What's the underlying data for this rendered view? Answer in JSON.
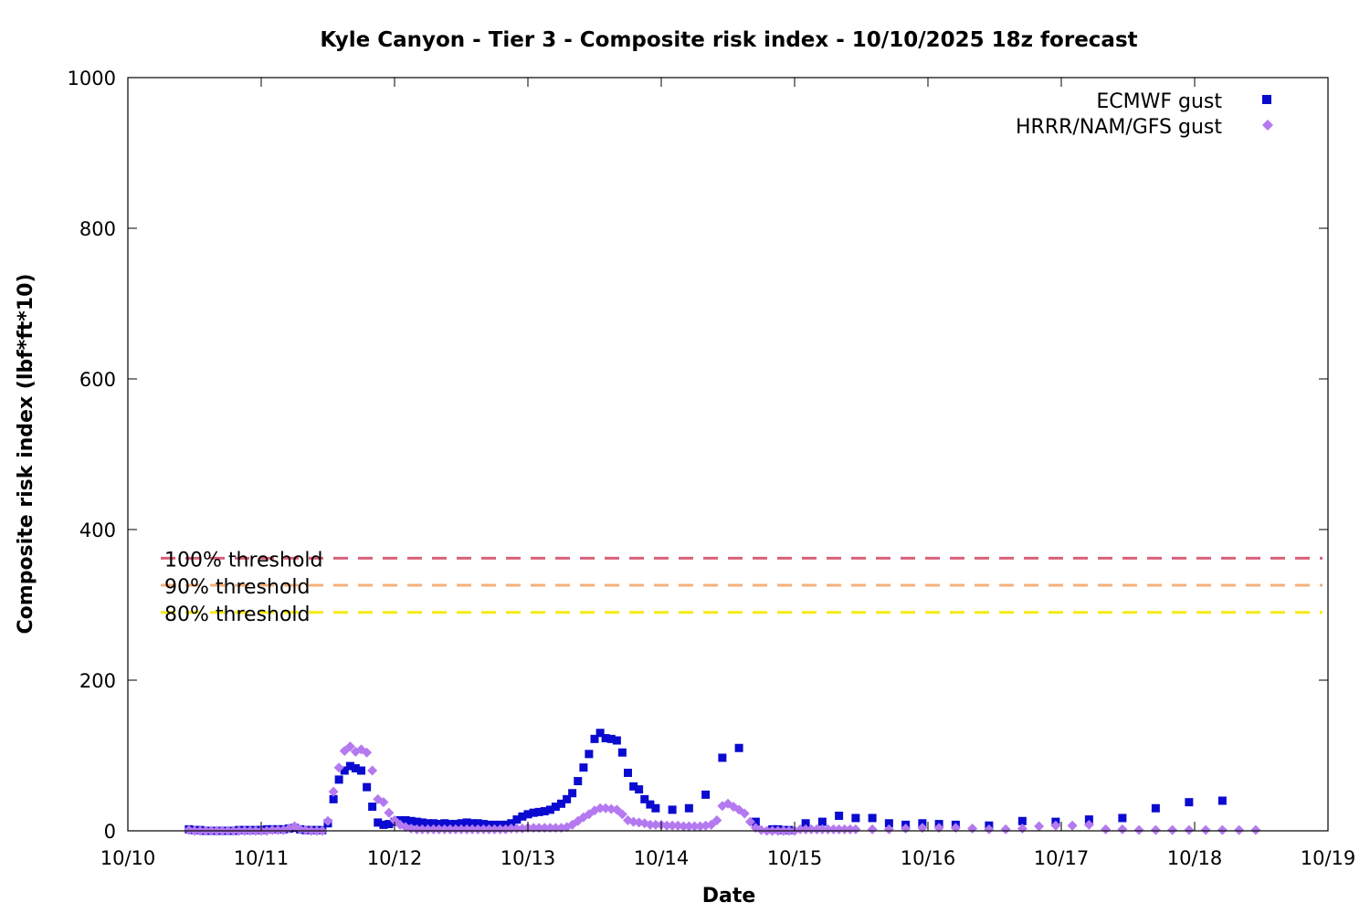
{
  "chart_data": {
    "type": "scatter",
    "title": "Kyle Canyon - Tier 3 - Composite risk index - 10/10/2025 18z forecast",
    "xlabel": "Date",
    "ylabel": "Composite risk index (lbf*ft*10)",
    "x_start_date": "2025-10-10",
    "xlim": [
      0,
      9
    ],
    "ylim": [
      0,
      1000
    ],
    "x_ticks": [
      "10/10",
      "10/11",
      "10/12",
      "10/13",
      "10/14",
      "10/15",
      "10/16",
      "10/17",
      "10/18",
      "10/19"
    ],
    "y_ticks": [
      0,
      200,
      400,
      600,
      800,
      1000
    ],
    "grid": false,
    "legend_position": "top-right",
    "thresholds": [
      {
        "label": "100% threshold",
        "value": 362,
        "color": "#d9607a"
      },
      {
        "label": "90% threshold",
        "value": 326,
        "color": "#f5b07a"
      },
      {
        "label": "80% threshold",
        "value": 290,
        "color": "#f5ea14"
      }
    ],
    "series": [
      {
        "name": "ECMWF gust",
        "marker": "square",
        "color": "#0a0ad0",
        "points": [
          [
            0.458,
            2
          ],
          [
            0.5,
            1
          ],
          [
            0.542,
            1
          ],
          [
            0.583,
            0
          ],
          [
            0.625,
            0
          ],
          [
            0.667,
            0
          ],
          [
            0.708,
            0
          ],
          [
            0.75,
            0
          ],
          [
            0.792,
            0
          ],
          [
            0.833,
            1
          ],
          [
            0.875,
            1
          ],
          [
            0.917,
            1
          ],
          [
            0.958,
            1
          ],
          [
            1.0,
            1
          ],
          [
            1.042,
            2
          ],
          [
            1.083,
            2
          ],
          [
            1.125,
            2
          ],
          [
            1.167,
            2
          ],
          [
            1.208,
            3
          ],
          [
            1.25,
            4
          ],
          [
            1.292,
            2
          ],
          [
            1.333,
            1
          ],
          [
            1.375,
            1
          ],
          [
            1.417,
            1
          ],
          [
            1.458,
            1
          ],
          [
            1.5,
            10
          ],
          [
            1.542,
            42
          ],
          [
            1.583,
            68
          ],
          [
            1.625,
            80
          ],
          [
            1.667,
            86
          ],
          [
            1.708,
            83
          ],
          [
            1.75,
            80
          ],
          [
            1.792,
            58
          ],
          [
            1.833,
            32
          ],
          [
            1.875,
            11
          ],
          [
            1.917,
            8
          ],
          [
            1.958,
            9
          ],
          [
            2.0,
            12
          ],
          [
            2.042,
            14
          ],
          [
            2.083,
            14
          ],
          [
            2.125,
            13
          ],
          [
            2.167,
            12
          ],
          [
            2.208,
            11
          ],
          [
            2.25,
            10
          ],
          [
            2.292,
            10
          ],
          [
            2.333,
            9
          ],
          [
            2.375,
            10
          ],
          [
            2.417,
            9
          ],
          [
            2.458,
            9
          ],
          [
            2.5,
            10
          ],
          [
            2.542,
            11
          ],
          [
            2.583,
            10
          ],
          [
            2.625,
            10
          ],
          [
            2.667,
            9
          ],
          [
            2.708,
            8
          ],
          [
            2.75,
            8
          ],
          [
            2.792,
            8
          ],
          [
            2.833,
            8
          ],
          [
            2.875,
            10
          ],
          [
            2.917,
            15
          ],
          [
            2.958,
            19
          ],
          [
            3.0,
            22
          ],
          [
            3.042,
            24
          ],
          [
            3.083,
            25
          ],
          [
            3.125,
            26
          ],
          [
            3.167,
            28
          ],
          [
            3.208,
            32
          ],
          [
            3.25,
            36
          ],
          [
            3.292,
            42
          ],
          [
            3.333,
            50
          ],
          [
            3.375,
            66
          ],
          [
            3.417,
            84
          ],
          [
            3.458,
            102
          ],
          [
            3.5,
            122
          ],
          [
            3.542,
            130
          ],
          [
            3.583,
            123
          ],
          [
            3.625,
            122
          ],
          [
            3.667,
            120
          ],
          [
            3.708,
            104
          ],
          [
            3.75,
            77
          ],
          [
            3.792,
            59
          ],
          [
            3.833,
            55
          ],
          [
            3.875,
            42
          ],
          [
            3.917,
            35
          ],
          [
            3.958,
            30
          ],
          [
            4.083,
            28
          ],
          [
            4.208,
            30
          ],
          [
            4.333,
            48
          ],
          [
            4.458,
            97
          ],
          [
            4.583,
            110
          ],
          [
            4.708,
            12
          ],
          [
            4.833,
            2
          ],
          [
            4.875,
            2
          ],
          [
            4.917,
            1
          ],
          [
            4.958,
            1
          ],
          [
            5.083,
            10
          ],
          [
            5.208,
            12
          ],
          [
            5.333,
            20
          ],
          [
            5.458,
            17
          ],
          [
            5.583,
            17
          ],
          [
            5.708,
            10
          ],
          [
            5.833,
            8
          ],
          [
            5.958,
            10
          ],
          [
            6.083,
            9
          ],
          [
            6.208,
            8
          ],
          [
            6.458,
            7
          ],
          [
            6.708,
            13
          ],
          [
            6.958,
            12
          ],
          [
            7.208,
            15
          ],
          [
            7.458,
            17
          ],
          [
            7.708,
            30
          ],
          [
            7.958,
            38
          ],
          [
            8.208,
            40
          ]
        ]
      },
      {
        "name": "HRRR/NAM/GFS gust",
        "marker": "diamond",
        "color": "#b479f0",
        "points": [
          [
            0.458,
            1
          ],
          [
            0.5,
            0
          ],
          [
            0.542,
            0
          ],
          [
            0.583,
            0
          ],
          [
            0.625,
            0
          ],
          [
            0.667,
            0
          ],
          [
            0.708,
            0
          ],
          [
            0.75,
            0
          ],
          [
            0.792,
            0
          ],
          [
            0.833,
            0
          ],
          [
            0.875,
            0
          ],
          [
            0.917,
            0
          ],
          [
            0.958,
            0
          ],
          [
            1.0,
            0
          ],
          [
            1.042,
            0
          ],
          [
            1.083,
            1
          ],
          [
            1.125,
            1
          ],
          [
            1.167,
            1
          ],
          [
            1.208,
            3
          ],
          [
            1.25,
            6
          ],
          [
            1.292,
            2
          ],
          [
            1.333,
            1
          ],
          [
            1.375,
            0
          ],
          [
            1.417,
            0
          ],
          [
            1.458,
            0
          ],
          [
            1.5,
            13
          ],
          [
            1.542,
            52
          ],
          [
            1.583,
            84
          ],
          [
            1.625,
            106
          ],
          [
            1.667,
            112
          ],
          [
            1.708,
            105
          ],
          [
            1.75,
            108
          ],
          [
            1.792,
            104
          ],
          [
            1.833,
            80
          ],
          [
            1.875,
            42
          ],
          [
            1.917,
            38
          ],
          [
            1.958,
            24
          ],
          [
            2.0,
            14
          ],
          [
            2.042,
            8
          ],
          [
            2.083,
            5
          ],
          [
            2.125,
            3
          ],
          [
            2.167,
            2
          ],
          [
            2.208,
            2
          ],
          [
            2.25,
            2
          ],
          [
            2.292,
            2
          ],
          [
            2.333,
            2
          ],
          [
            2.375,
            2
          ],
          [
            2.417,
            2
          ],
          [
            2.458,
            2
          ],
          [
            2.5,
            2
          ],
          [
            2.542,
            2
          ],
          [
            2.583,
            2
          ],
          [
            2.625,
            2
          ],
          [
            2.667,
            2
          ],
          [
            2.708,
            2
          ],
          [
            2.75,
            2
          ],
          [
            2.792,
            2
          ],
          [
            2.833,
            2
          ],
          [
            2.875,
            3
          ],
          [
            2.917,
            3
          ],
          [
            2.958,
            3
          ],
          [
            3.0,
            4
          ],
          [
            3.042,
            4
          ],
          [
            3.083,
            4
          ],
          [
            3.125,
            4
          ],
          [
            3.167,
            4
          ],
          [
            3.208,
            4
          ],
          [
            3.25,
            4
          ],
          [
            3.292,
            5
          ],
          [
            3.333,
            8
          ],
          [
            3.375,
            13
          ],
          [
            3.417,
            18
          ],
          [
            3.458,
            22
          ],
          [
            3.5,
            27
          ],
          [
            3.542,
            30
          ],
          [
            3.583,
            30
          ],
          [
            3.625,
            29
          ],
          [
            3.667,
            28
          ],
          [
            3.708,
            22
          ],
          [
            3.75,
            14
          ],
          [
            3.792,
            12
          ],
          [
            3.833,
            11
          ],
          [
            3.875,
            10
          ],
          [
            3.917,
            8
          ],
          [
            3.958,
            8
          ],
          [
            4.0,
            8
          ],
          [
            4.042,
            7
          ],
          [
            4.083,
            7
          ],
          [
            4.125,
            7
          ],
          [
            4.167,
            6
          ],
          [
            4.208,
            6
          ],
          [
            4.25,
            6
          ],
          [
            4.292,
            6
          ],
          [
            4.333,
            7
          ],
          [
            4.375,
            8
          ],
          [
            4.417,
            14
          ],
          [
            4.458,
            33
          ],
          [
            4.5,
            36
          ],
          [
            4.542,
            32
          ],
          [
            4.583,
            28
          ],
          [
            4.625,
            23
          ],
          [
            4.667,
            12
          ],
          [
            4.708,
            4
          ],
          [
            4.75,
            1
          ],
          [
            4.792,
            0
          ],
          [
            4.833,
            0
          ],
          [
            4.875,
            0
          ],
          [
            4.917,
            0
          ],
          [
            4.958,
            0
          ],
          [
            5.0,
            0
          ],
          [
            5.042,
            2
          ],
          [
            5.083,
            2
          ],
          [
            5.125,
            2
          ],
          [
            5.167,
            2
          ],
          [
            5.208,
            2
          ],
          [
            5.25,
            2
          ],
          [
            5.292,
            2
          ],
          [
            5.333,
            2
          ],
          [
            5.375,
            2
          ],
          [
            5.417,
            2
          ],
          [
            5.458,
            2
          ],
          [
            5.583,
            2
          ],
          [
            5.708,
            2
          ],
          [
            5.833,
            3
          ],
          [
            5.958,
            4
          ],
          [
            6.083,
            4
          ],
          [
            6.208,
            4
          ],
          [
            6.333,
            3
          ],
          [
            6.458,
            2
          ],
          [
            6.583,
            2
          ],
          [
            6.708,
            3
          ],
          [
            6.833,
            6
          ],
          [
            6.958,
            7
          ],
          [
            7.083,
            7
          ],
          [
            7.208,
            8
          ],
          [
            7.333,
            2
          ],
          [
            7.458,
            2
          ],
          [
            7.583,
            1
          ],
          [
            7.708,
            1
          ],
          [
            7.833,
            1
          ],
          [
            7.958,
            1
          ],
          [
            8.083,
            1
          ],
          [
            8.208,
            1
          ],
          [
            8.333,
            1
          ],
          [
            8.458,
            1
          ]
        ]
      }
    ]
  }
}
